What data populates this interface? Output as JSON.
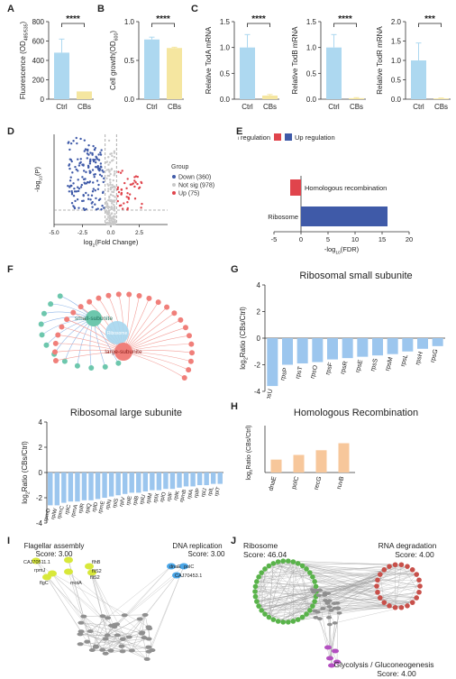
{
  "panel_labels": {
    "a": "A",
    "b": "B",
    "c": "C",
    "d": "D",
    "e": "E",
    "f": "F",
    "g": "G",
    "h": "H",
    "i": "I",
    "j": "J"
  },
  "colors": {
    "ctrl": "#add8f0",
    "cbs": "#f5e6a0",
    "down": "#3f5aa8",
    "up": "#e0444c",
    "notsig": "#c8c8c8",
    "bar_blue": "#9cc6ee",
    "bar_orange": "#f7c79b",
    "ribo_green": "#59b34a",
    "rna_red": "#c8504a",
    "gly_purple": "#b34fc0"
  },
  "chart_data": [
    {
      "id": "A",
      "type": "bar",
      "categories": [
        "Ctrl",
        "CBs"
      ],
      "values": [
        480,
        80
      ],
      "errors": [
        140,
        0
      ],
      "ylabel": "Fluorescence (OD",
      "ylabel_sub": "485/535",
      "ylabel_end": ")",
      "ylim": [
        0,
        800
      ],
      "yticks": [
        "0",
        "200",
        "400",
        "600",
        "800"
      ],
      "sig": "****"
    },
    {
      "id": "B",
      "type": "bar",
      "categories": [
        "Ctrl",
        "CBs"
      ],
      "values": [
        0.77,
        0.66
      ],
      "errors": [
        0.03,
        0.01
      ],
      "ylabel": "Cell growth(OD",
      "ylabel_sub": "600",
      "ylabel_end": ")",
      "ylim": [
        0,
        1.0
      ],
      "yticks": [
        "0.0",
        "0.5",
        "1.0"
      ],
      "sig": "****"
    },
    {
      "id": "C1",
      "type": "bar",
      "categories": [
        "Ctrl",
        "CBs"
      ],
      "values": [
        1.0,
        0.07
      ],
      "errors": [
        0.25,
        0.02
      ],
      "ylabel": "Relative TodA mRNA",
      "ylim": [
        0,
        1.5
      ],
      "yticks": [
        "0.0",
        "0.5",
        "1.0",
        "1.5"
      ],
      "sig": "****"
    },
    {
      "id": "C2",
      "type": "bar",
      "categories": [
        "Ctrl",
        "CBs"
      ],
      "values": [
        1.0,
        0.02
      ],
      "errors": [
        0.25,
        0.01
      ],
      "ylabel": "Relative TodB mRNA",
      "ylim": [
        0,
        1.5
      ],
      "yticks": [
        "0.0",
        "0.5",
        "1.0",
        "1.5"
      ],
      "sig": "****"
    },
    {
      "id": "C3",
      "type": "bar",
      "categories": [
        "Ctrl",
        "CBs"
      ],
      "values": [
        1.0,
        0.02
      ],
      "errors": [
        0.45,
        0.01
      ],
      "ylabel": "Relative TodR mRNA",
      "ylim": [
        0,
        2.0
      ],
      "yticks": [
        "0.0",
        "0.5",
        "1.0",
        "1.5",
        "2.0"
      ],
      "sig": "***"
    },
    {
      "id": "D",
      "type": "scatter",
      "xlabel": "log",
      "xlabel_sub": "2",
      "xlabel_end": "(Fold Change)",
      "ylabel": "-log",
      "ylabel_sub": "10",
      "ylabel_end": "(P)",
      "xlim": [
        -5,
        5
      ],
      "xticks": [
        "-5.0",
        "-2.5",
        "0.0",
        "2.5"
      ],
      "legend_title": "Group",
      "legend": [
        "Down (360)",
        "Not sig (978)",
        "Up (75)"
      ],
      "counts": {
        "down": 360,
        "notsig": 978,
        "up": 75
      }
    },
    {
      "id": "E",
      "type": "bar",
      "orientation": "horizontal",
      "categories": [
        "Homologous recombination",
        "Ribosome"
      ],
      "values": [
        -2,
        16
      ],
      "legend": [
        "Down regulation",
        "Up regulation"
      ],
      "xlabel": "-log",
      "xlabel_sub": "10",
      "xlabel_end": "(FDR)",
      "xlim": [
        -5,
        20
      ],
      "xticks": [
        "-5",
        "0",
        "5",
        "10",
        "15",
        "20"
      ]
    },
    {
      "id": "G",
      "type": "bar",
      "title": "Ribosomal small subunite",
      "ylabel": "log",
      "ylabel_sub": "2",
      "ylabel_end": "Ratio (CBs/Ctrl)",
      "categories": [
        "rpsU",
        "rpsP",
        "rpsT",
        "rpsO",
        "rpsF",
        "rpsR",
        "rpsE",
        "rpsS",
        "rpsM",
        "rpsL",
        "rpsH",
        "rpsG"
      ],
      "values": [
        -3.6,
        -2.0,
        -1.9,
        -1.8,
        -1.6,
        -1.5,
        -1.4,
        -1.3,
        -1.2,
        -1.0,
        -0.8,
        -0.6
      ],
      "ylim": [
        -4,
        4
      ],
      "yticks": [
        "4",
        "2",
        "0",
        "-2",
        "-4"
      ]
    },
    {
      "id": "H",
      "type": "bar",
      "title": "Homologous Recombination",
      "ylabel": "log",
      "ylabel_sub": "2",
      "ylabel_end": "Ratio (CBs/Ctrl)",
      "categories": [
        "dnaE",
        "polC",
        "recG",
        "ruvB"
      ],
      "values": [
        0.55,
        0.75,
        0.95,
        1.25
      ],
      "ylim": [
        0,
        2
      ],
      "yticks": []
    },
    {
      "id": "LS",
      "type": "bar",
      "title": "Ribosomal large subunite",
      "ylabel": "log",
      "ylabel_sub": "2",
      "ylabel_end": "Ratio (CBs/Ctrl)",
      "categories": [
        "rpmD",
        "rplW",
        "rpmC",
        "rplC",
        "rpmA",
        "rplR",
        "rplQ",
        "rplD",
        "rpmE",
        "rplN",
        "rplS",
        "rplV",
        "rplE",
        "rplB",
        "rplU",
        "rplM",
        "rplX",
        "rplO",
        "rplF",
        "rplK",
        "rpmB",
        "rplA",
        "rplP",
        "rplJ",
        "rplL",
        "rplT"
      ],
      "values": [
        -2.6,
        -2.6,
        -2.4,
        -2.3,
        -2.3,
        -2.2,
        -2.2,
        -2.1,
        -2.0,
        -1.9,
        -1.8,
        -1.7,
        -1.6,
        -1.6,
        -1.5,
        -1.4,
        -1.4,
        -1.3,
        -1.3,
        -1.2,
        -1.1,
        -1.1,
        -1.0,
        -1.0,
        -0.9,
        -0.9
      ],
      "ylim": [
        -4,
        4
      ],
      "yticks": [
        "4",
        "2",
        "0",
        "-2",
        "-4"
      ]
    }
  ],
  "network_f": {
    "small_label": "small-subunite",
    "large_label": "large-subunite",
    "center_label": "Ribosome"
  },
  "network_i": {
    "flagellar_title": "Flagellar assembly",
    "flagellar_score": "Score: 3.00",
    "dna_title": "DNA replication",
    "dna_score": "Score: 3.00",
    "genes": [
      "flgC",
      "CAJ70511.1",
      "fliS2",
      "flhB",
      "rpmJ",
      "fliS2",
      "motA",
      "dnaE",
      "polC",
      "CAJ70453.1"
    ]
  },
  "network_j": {
    "ribosome_title": "Ribosome",
    "ribosome_score": "Score: 46.04",
    "rna_title": "RNA degradation",
    "rna_score": "Score: 4.00",
    "gly_title": "Glycolysis / Gluconeogenesis",
    "gly_score": "Score: 4.00"
  }
}
